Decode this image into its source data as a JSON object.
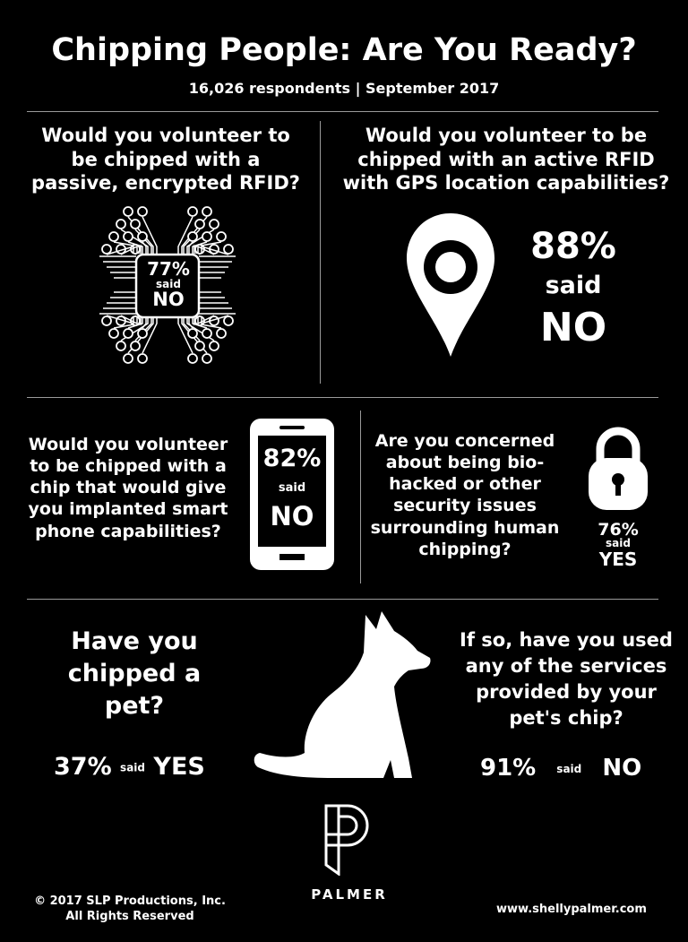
{
  "header": {
    "title": "Chipping People: Are You Ready?",
    "subtitle": "16,026 respondents | September 2017"
  },
  "q1": {
    "question": "Would you volunteer to be chipped with a passive, encrypted RFID?",
    "percent": "77%",
    "said": "said",
    "answer": "NO",
    "icon": "circuit-chip-icon"
  },
  "q2": {
    "question": "Would you volunteer to be chipped with an active RFID with GPS location capabilities?",
    "percent": "88%",
    "said": "said",
    "answer": "NO",
    "icon": "map-pin-icon"
  },
  "q3": {
    "question": "Would you volunteer to be chipped with a chip that would give you implanted smart phone capabilities?",
    "percent": "82%",
    "said": "said",
    "answer": "NO",
    "icon": "smartphone-icon"
  },
  "q4": {
    "question": "Are you concerned about being bio-hacked or other security issues surrounding human chipping?",
    "percent": "76%",
    "said": "said",
    "answer": "YES",
    "icon": "padlock-icon"
  },
  "q5": {
    "question": "Have you chipped a pet?",
    "percent": "37%",
    "said": "said",
    "answer": "YES"
  },
  "q6": {
    "question": "If so, have you used any of the services provided by your pet's chip?",
    "percent": "91%",
    "said": "said",
    "answer": "NO"
  },
  "pet_icon": "dog-icon",
  "footer": {
    "copyright": "© 2017 SLP Productions, Inc.",
    "rights": "All Rights Reserved",
    "logo_text": "PALMER",
    "website": "www.shellypalmer.com"
  }
}
